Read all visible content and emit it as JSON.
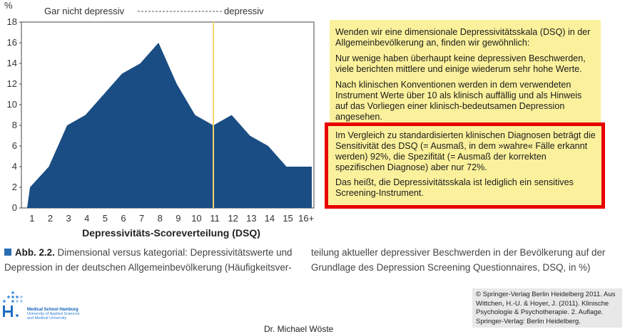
{
  "chart_data": {
    "type": "area",
    "x": [
      "1",
      "2",
      "3",
      "4",
      "5",
      "6",
      "7",
      "8",
      "9",
      "10",
      "11",
      "12",
      "13",
      "14",
      "15",
      "16+"
    ],
    "values": [
      2,
      4,
      8,
      9,
      11,
      13,
      14,
      16,
      12,
      9,
      8,
      9,
      7,
      6,
      4,
      4
    ],
    "ylim": [
      0,
      18
    ],
    "yticks": [
      0,
      2,
      4,
      6,
      8,
      10,
      12,
      14,
      16,
      18
    ],
    "xlabel": "Depressivitäts-Scoreverteilung (DSQ)",
    "ylabel": "%",
    "cutoff_x": 11,
    "top_label_left": "Gar nicht depressiv",
    "top_label_right": "depressiv",
    "fill_color": "#1a4d83",
    "cutoff_color": "#f5d36a"
  },
  "info_box": {
    "p1": "Wenden wir eine dimensionale Depressivitätsskala (DSQ) in der Allgemeinbevölkerung an, finden wir gewöhnlich:",
    "p2": "Nur wenige haben überhaupt keine depressiven Beschwerden, viele berichten mittlere und einige wiederum sehr hohe Werte.",
    "p3": "Nach klinischen Konventionen werden in dem verwendeten Instrument Werte über 10 als klinisch auffällig und als Hinweis auf das Vorliegen einer klinisch-bedeutsamen Depression angesehen."
  },
  "highlight_box": {
    "p1": "Im Vergleich zu standardisierten klinischen Diagnosen beträgt die Sensitivität des DSQ (= Ausmaß, in dem »wahre« Fälle erkannt werden) 92%, die Spezifität (= Ausmaß der korrekten spezifischen Diagnose) aber nur 72%.",
    "p2": "Das heißt, die Depressivitätsskala ist lediglich ein sensitives Screening-Instrument."
  },
  "caption": {
    "label": "Abb. 2.2.",
    "left": "Dimensional versus kategorial: Depressivitätswerte und Depression in der deutschen Allgemeinbevölkerung (Häufigkeitsver-",
    "right": "teilung aktueller depressiver Beschwerden in der Bevölkerung auf der Grundlage des Depression Screening Questionnaires, DSQ, in %)"
  },
  "logo": {
    "line1": "Medical School Hamburg",
    "line2": "University of Applied Sciences",
    "line3": "and Medical University"
  },
  "presenter": "Dr. Michael Wöste",
  "copyright": "© Springer-Verlag Berlin Heidelberg 2011. Aus Wittchen, H.-U. & Hoyer, J. (2011). Klinische Psychologie & Psychotherapie. 2. Auflage. Springer-Verlag: Berlin Heidelberg."
}
